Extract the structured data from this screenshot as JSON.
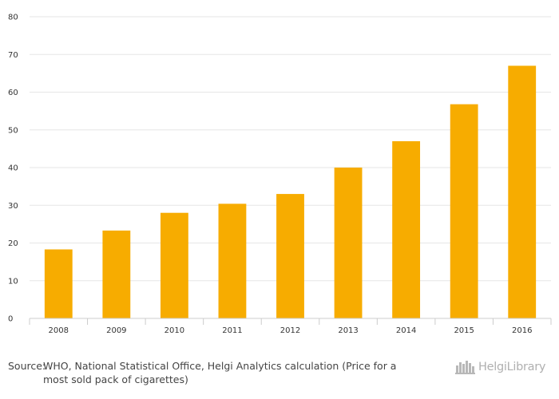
{
  "chart_data": {
    "type": "bar",
    "title": "",
    "xlabel": "",
    "ylabel": "",
    "categories": [
      "2008",
      "2009",
      "2010",
      "2011",
      "2012",
      "2013",
      "2014",
      "2015",
      "2016"
    ],
    "values": [
      18.3,
      23.3,
      28.0,
      30.4,
      33.0,
      40.0,
      47.0,
      56.8,
      67.0
    ],
    "ylim": [
      0,
      80
    ],
    "yticks": [
      0,
      10,
      20,
      30,
      40,
      50,
      60,
      70,
      80
    ],
    "grid": true,
    "bar_color": "#f7ac00",
    "grid_color": "#e6e6e6"
  },
  "footer": {
    "source_label": "Source:",
    "source_text": "WHO, National Statistical Office, Helgi Analytics calculation (Price for a most sold pack of cigarettes)",
    "logo_text": "HelgiLibrary",
    "logo_icon": "helgi-library-icon"
  }
}
